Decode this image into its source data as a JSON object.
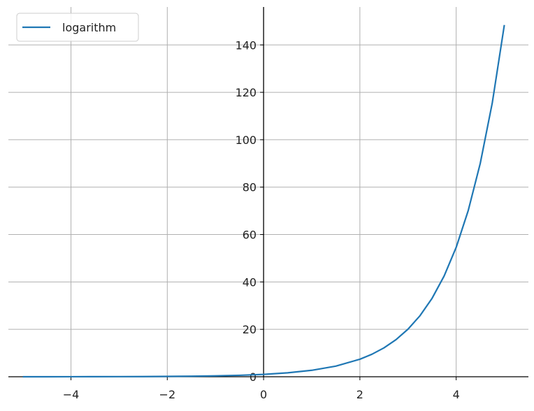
{
  "chart_data": {
    "type": "line",
    "title": "",
    "xlabel": "",
    "ylabel": "",
    "xlim": [
      -5.3,
      5.5
    ],
    "ylim": [
      0,
      156
    ],
    "grid": true,
    "spines": "centered",
    "legend_position": "upper-left",
    "x_ticks": [
      {
        "value": -4,
        "label": "−4"
      },
      {
        "value": -2,
        "label": "−2"
      },
      {
        "value": 0,
        "label": "0"
      },
      {
        "value": 2,
        "label": "2"
      },
      {
        "value": 4,
        "label": "4"
      }
    ],
    "y_ticks": [
      {
        "value": 0,
        "label": "0"
      },
      {
        "value": 20,
        "label": "20"
      },
      {
        "value": 40,
        "label": "40"
      },
      {
        "value": 60,
        "label": "60"
      },
      {
        "value": 80,
        "label": "80"
      },
      {
        "value": 100,
        "label": "100"
      },
      {
        "value": 120,
        "label": "120"
      },
      {
        "value": 140,
        "label": "140"
      }
    ],
    "series": [
      {
        "name": "logarithm",
        "color": "#1f77b4",
        "x": [
          -5,
          -4.5,
          -4,
          -3.5,
          -3,
          -2.5,
          -2,
          -1.5,
          -1,
          -0.5,
          0,
          0.5,
          1,
          1.5,
          2,
          2.25,
          2.5,
          2.75,
          3,
          3.25,
          3.5,
          3.75,
          4,
          4.25,
          4.5,
          4.75,
          5
        ],
        "y": [
          0.01,
          0.01,
          0.02,
          0.03,
          0.05,
          0.08,
          0.14,
          0.22,
          0.37,
          0.61,
          1.0,
          1.65,
          2.72,
          4.48,
          7.39,
          9.49,
          12.18,
          15.64,
          20.09,
          25.79,
          33.12,
          42.52,
          54.6,
          70.11,
          90.02,
          115.58,
          148.41
        ]
      }
    ]
  }
}
